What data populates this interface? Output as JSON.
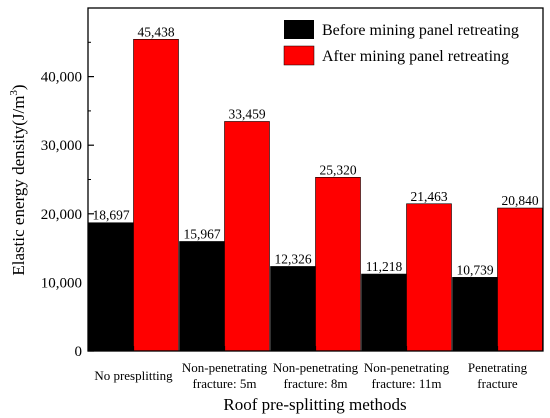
{
  "chart_data": {
    "type": "bar",
    "xlabel": "Roof pre-splitting methods",
    "ylabel_main": "Elastic energy density(J/m",
    "ylabel_sup": "3",
    "ylabel_close": ")",
    "ylim": [
      0,
      50000
    ],
    "yticks": [
      0,
      10000,
      20000,
      30000,
      40000
    ],
    "ytick_labels": [
      "0",
      "10,000",
      "20,000",
      "30,000",
      "40,000"
    ],
    "categories": [
      [
        "No presplitting"
      ],
      [
        "Non-penetrating",
        "fracture: 5m"
      ],
      [
        "Non-penetrating",
        "fracture: 8m"
      ],
      [
        "Non-penetrating",
        "fracture: 11m"
      ],
      [
        "Penetrating",
        "fracture"
      ]
    ],
    "series": [
      {
        "name": "Before mining panel retreating",
        "color": "#000000",
        "values": [
          18697,
          15967,
          12326,
          11218,
          10739
        ],
        "labels": [
          "18,697",
          "15,967",
          "12,326",
          "11,218",
          "10,739"
        ]
      },
      {
        "name": "After mining panel retreating",
        "color": "#ff0000",
        "values": [
          45438,
          33459,
          25320,
          21463,
          20840
        ],
        "labels": [
          "45,438",
          "33,459",
          "25,320",
          "21,463",
          "20,840"
        ]
      }
    ],
    "legend_position": "top-right",
    "grid": false
  }
}
